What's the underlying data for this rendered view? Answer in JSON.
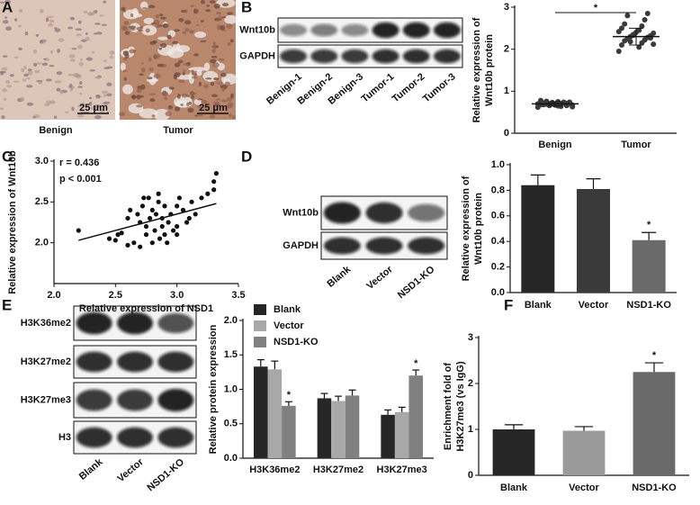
{
  "figure": {
    "panel_labels": [
      "A",
      "B",
      "C",
      "D",
      "E",
      "F"
    ],
    "micrographs": {
      "labels": [
        "Benign",
        "Tumor"
      ],
      "scale_bar": "25 μm"
    },
    "blots": [
      {
        "rows": [
          "Wnt10b",
          "GAPDH"
        ],
        "lanes": [
          "Benign-1",
          "Benign-2",
          "Benign-3",
          "Tumor-1",
          "Tumor-2",
          "Tumor-3"
        ]
      },
      {
        "rows": [
          "Wnt10b",
          "GAPDH"
        ],
        "lanes": [
          "Blank",
          "Vector",
          "NSD1-KO"
        ]
      },
      {
        "rows": [
          "H3K36me2",
          "H3K27me2",
          "H3K27me3",
          "H3"
        ],
        "lanes": [
          "Blank",
          "Vector",
          "NSD1-KO"
        ]
      }
    ]
  },
  "chart_data": [
    {
      "type": "strip",
      "y_label": [
        "Relative expression of",
        "Wnt10b protein"
      ],
      "categories": [
        "Benign",
        "Tumor"
      ],
      "values": [
        [
          0.62,
          0.65,
          0.68,
          0.7,
          0.72,
          0.74,
          0.76,
          0.66,
          0.69,
          0.71,
          0.73,
          0.63,
          0.67,
          0.7,
          0.75,
          0.78,
          0.64,
          0.68,
          0.72,
          0.69,
          0.71,
          0.66,
          0.74,
          0.7,
          0.67
        ],
        [
          1.95,
          2.05,
          2.1,
          2.15,
          2.2,
          2.22,
          2.25,
          2.28,
          2.3,
          2.32,
          2.35,
          2.38,
          2.4,
          2.42,
          2.45,
          2.5,
          2.55,
          2.6,
          2.7,
          2.8,
          2.85,
          2.18,
          2.27,
          2.33,
          2.12
        ]
      ],
      "means": [
        0.7,
        2.3
      ],
      "errors": [
        0.05,
        0.2
      ],
      "color": "#3a3a3a",
      "ylim": [
        0,
        3
      ],
      "yticks": [
        0,
        1,
        2,
        3
      ],
      "significance": "*"
    },
    {
      "type": "scatter",
      "x_label": "Relative expression of NSD1",
      "y_label": [
        "Relative expression of Wnt10b"
      ],
      "x": [
        2.2,
        2.45,
        2.5,
        2.52,
        2.55,
        2.6,
        2.62,
        2.65,
        2.68,
        2.7,
        2.7,
        2.72,
        2.73,
        2.75,
        2.75,
        2.77,
        2.78,
        2.8,
        2.8,
        2.82,
        2.83,
        2.85,
        2.85,
        2.86,
        2.88,
        2.88,
        2.9,
        2.9,
        2.92,
        2.93,
        2.95,
        2.97,
        3.0,
        3.0,
        3.02,
        3.05,
        3.08,
        3.1,
        3.12,
        3.15,
        3.2,
        3.25,
        3.3,
        3.32,
        3.3,
        3.0,
        2.6
      ],
      "y": [
        2.15,
        2.05,
        2.03,
        2.1,
        2.12,
        2.3,
        2.4,
        2.0,
        2.35,
        1.95,
        2.25,
        2.45,
        2.55,
        2.2,
        2.1,
        2.55,
        2.3,
        2.4,
        2.0,
        2.15,
        2.35,
        2.5,
        2.6,
        2.05,
        2.2,
        2.3,
        2.45,
        2.1,
        2.0,
        2.25,
        2.35,
        2.15,
        2.45,
        2.2,
        2.55,
        2.4,
        2.25,
        2.3,
        2.5,
        2.35,
        2.55,
        2.6,
        2.65,
        2.85,
        2.75,
        2.1,
        1.97
      ],
      "fit": {
        "x": [
          2.2,
          3.32
        ],
        "y": [
          2.03,
          2.48
        ]
      },
      "color": "#111",
      "annotations": [
        "r = 0.436",
        "p < 0.001"
      ],
      "xlim": [
        2.0,
        3.5
      ],
      "xticks": [
        {
          "value": 2,
          "label": "2.0"
        },
        2.5,
        {
          "value": 3,
          "label": "3.0"
        },
        3.5
      ],
      "ylim": [
        1.5,
        3.0
      ],
      "yticks": [
        {
          "value": 2,
          "label": "2.0"
        },
        2.5,
        {
          "value": 3,
          "label": "3.0"
        }
      ]
    },
    {
      "type": "bar",
      "y_label": [
        "Relative expression of",
        "Wnt10b protein"
      ],
      "categories": [
        "Blank",
        "Vector",
        "NSD1-KO"
      ],
      "values": [
        0.84,
        0.81,
        0.41
      ],
      "errors": [
        0.08,
        0.08,
        0.06
      ],
      "colors": [
        "#262626",
        "#3a3a3a",
        "#6a6a6a"
      ],
      "annotations": [
        {
          "category": "NSD1-KO",
          "text": "*"
        }
      ],
      "ylim": [
        0,
        1.0
      ],
      "yticks": [
        {
          "value": 0,
          "label": "0.0"
        },
        0.2,
        0.4,
        0.6,
        0.8,
        {
          "value": 1,
          "label": "1.0"
        }
      ]
    },
    {
      "type": "grouped_bar",
      "y_label": [
        "Relative protein expression"
      ],
      "categories": [
        "H3K36me2",
        "H3K27me2",
        "H3K27me3"
      ],
      "series": [
        {
          "name": "Blank",
          "color": "#262626",
          "values": [
            1.33,
            0.87,
            0.63
          ],
          "errors": [
            0.1,
            0.07,
            0.07
          ]
        },
        {
          "name": "Vector",
          "color": "#a8a8a8",
          "values": [
            1.29,
            0.83,
            0.67
          ],
          "errors": [
            0.12,
            0.07,
            0.07
          ]
        },
        {
          "name": "NSD1-KO",
          "color": "#808080",
          "values": [
            0.76,
            0.91,
            1.2
          ],
          "errors": [
            0.06,
            0.08,
            0.08
          ]
        }
      ],
      "annotations": [
        {
          "series": "NSD1-KO",
          "category": "H3K36me2",
          "text": "*"
        },
        {
          "series": "NSD1-KO",
          "category": "H3K27me3",
          "text": "*"
        }
      ],
      "legend": "top-left",
      "ylim": [
        0,
        2.0
      ],
      "yticks": [
        {
          "value": 0,
          "label": "0.0"
        },
        0.5,
        {
          "value": 1,
          "label": "1.0"
        },
        1.5,
        {
          "value": 2,
          "label": "2.0"
        }
      ]
    },
    {
      "type": "bar",
      "y_label": [
        "Enrichment fold of",
        "H3K27me3 (vs IgG)"
      ],
      "categories": [
        "Blank",
        "Vector",
        "NSD1-KO"
      ],
      "values": [
        1.0,
        0.97,
        2.25
      ],
      "errors": [
        0.1,
        0.09,
        0.2
      ],
      "colors": [
        "#262626",
        "#9a9a9a",
        "#6a6a6a"
      ],
      "annotations": [
        {
          "category": "NSD1-KO",
          "text": "*"
        }
      ],
      "ylim": [
        0,
        3
      ],
      "yticks": [
        0,
        1,
        2,
        3
      ]
    }
  ]
}
